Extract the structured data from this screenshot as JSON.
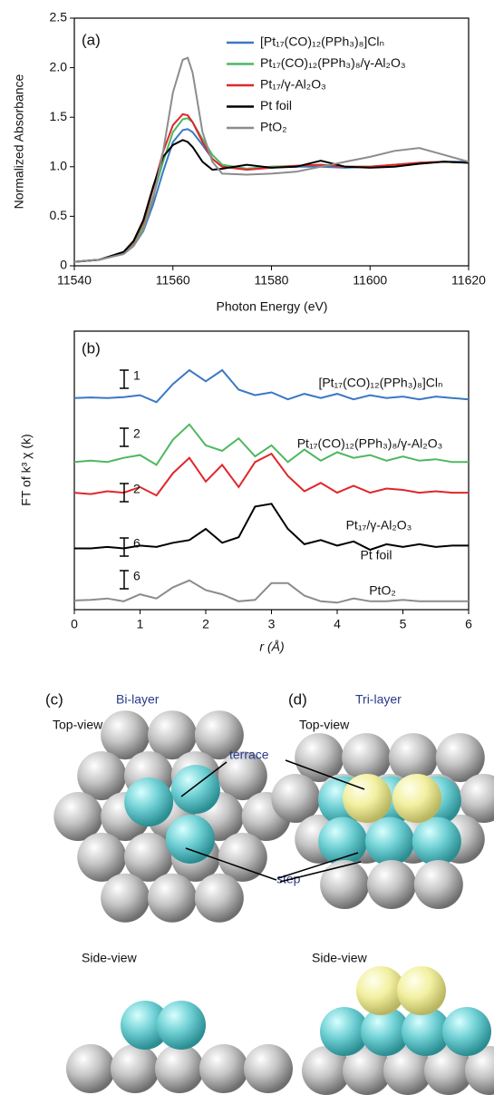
{
  "chart_data": [
    {
      "type": "line",
      "panel": "(a)",
      "x_label": "Photon Energy (eV)",
      "y_label": "Normalized Absorbance",
      "x": [
        11540,
        11545,
        11550,
        11552,
        11554,
        11556,
        11558,
        11560,
        11562,
        11563,
        11564,
        11566,
        11568,
        11570,
        11575,
        11580,
        11585,
        11590,
        11595,
        11600,
        11605,
        11610,
        11615,
        11620
      ],
      "xlim": [
        11540,
        11620
      ],
      "xticks": [
        11540,
        11560,
        11580,
        11600,
        11620
      ],
      "ylim": [
        0,
        2.5
      ],
      "yticks": [
        0,
        0.5,
        {
          "value": 1,
          "label": "1.0"
        },
        1.5,
        {
          "value": 2,
          "label": "2.0"
        },
        2.5
      ],
      "series": [
        {
          "name": "[Pt₁₇(CO)₁₂(PPh₃)₈]Clₙ",
          "color": "#3a78c4",
          "values": [
            0.04,
            0.06,
            0.12,
            0.2,
            0.35,
            0.62,
            0.95,
            1.25,
            1.37,
            1.38,
            1.35,
            1.22,
            1.08,
            1.0,
            0.98,
            1.0,
            1.0,
            1.0,
            0.99,
            1.0,
            1.02,
            1.04,
            1.05,
            1.05
          ]
        },
        {
          "name": "Pt₁₇(CO)₁₂(PPh₃)₈/γ-Al₂O₃",
          "color": "#4db860",
          "values": [
            0.04,
            0.06,
            0.13,
            0.22,
            0.4,
            0.7,
            1.05,
            1.35,
            1.48,
            1.49,
            1.45,
            1.28,
            1.12,
            1.02,
            0.98,
            1.0,
            1.01,
            1.02,
            1.0,
            1.0,
            1.02,
            1.04,
            1.05,
            1.04
          ]
        },
        {
          "name": "Pt₁₇/γ-Al₂O₃",
          "color": "#e0262b",
          "values": [
            0.04,
            0.06,
            0.14,
            0.24,
            0.44,
            0.78,
            1.15,
            1.42,
            1.53,
            1.52,
            1.45,
            1.25,
            1.08,
            1.0,
            0.97,
            0.99,
            1.01,
            1.02,
            1.0,
            1.0,
            1.02,
            1.04,
            1.05,
            1.04
          ]
        },
        {
          "name": "Pt foil",
          "color": "#000000",
          "values": [
            0.04,
            0.06,
            0.14,
            0.25,
            0.46,
            0.8,
            1.1,
            1.22,
            1.27,
            1.25,
            1.2,
            1.05,
            0.97,
            0.98,
            1.02,
            0.99,
            1.0,
            1.06,
            1.0,
            0.99,
            1.0,
            1.03,
            1.05,
            1.04
          ]
        },
        {
          "name": "PtO₂",
          "color": "#8c8c8c",
          "values": [
            0.04,
            0.06,
            0.12,
            0.2,
            0.36,
            0.68,
            1.15,
            1.75,
            2.08,
            2.1,
            1.95,
            1.35,
            1.05,
            0.93,
            0.92,
            0.93,
            0.95,
            1.0,
            1.05,
            1.1,
            1.16,
            1.19,
            1.12,
            1.05
          ]
        }
      ]
    },
    {
      "type": "line",
      "panel": "(b)",
      "x_label": "r (Å)",
      "y_label": "FT of k³ χ (k)",
      "x": [
        0,
        0.25,
        0.5,
        0.75,
        1,
        1.25,
        1.5,
        1.75,
        2,
        2.25,
        2.5,
        2.75,
        3,
        3.25,
        3.5,
        3.75,
        4,
        4.25,
        4.5,
        4.75,
        5,
        5.25,
        5.5,
        5.75,
        6
      ],
      "xlim": [
        0,
        6
      ],
      "xticks": [
        0,
        1,
        2,
        3,
        4,
        5,
        6
      ],
      "ylim": [
        0,
        10
      ],
      "series": [
        {
          "name": "[Pt₁₇(CO)₁₂(PPh₃)₈]Clₙ",
          "color": "#3a78c4",
          "scale": 1,
          "values": [
            7.6,
            7.62,
            7.6,
            7.63,
            7.7,
            7.45,
            8.1,
            8.6,
            8.2,
            8.6,
            7.9,
            7.7,
            7.8,
            7.55,
            7.75,
            7.6,
            7.75,
            7.55,
            7.7,
            7.6,
            7.65,
            7.55,
            7.65,
            7.6,
            7.55
          ]
        },
        {
          "name": "Pt₁₇(CO)₁₂(PPh₃)₈/γ-Al₂O₃",
          "color": "#4db860",
          "scale": 2,
          "values": [
            5.3,
            5.35,
            5.3,
            5.45,
            5.55,
            5.2,
            6.1,
            6.65,
            5.9,
            5.7,
            6.15,
            5.5,
            5.9,
            5.3,
            5.75,
            5.35,
            5.65,
            5.45,
            5.55,
            5.35,
            5.5,
            5.35,
            5.4,
            5.3,
            5.3
          ]
        },
        {
          "name": "Pt₁₇/γ-Al₂O₃",
          "color": "#e0262b",
          "scale": 2,
          "values": [
            4.2,
            4.15,
            4.25,
            4.2,
            4.4,
            4.1,
            4.9,
            5.45,
            4.6,
            5.2,
            4.4,
            5.3,
            5.6,
            4.8,
            4.25,
            4.55,
            4.2,
            4.45,
            4.2,
            4.35,
            4.3,
            4.2,
            4.25,
            4.2,
            4.2
          ]
        },
        {
          "name": "Pt foil",
          "color": "#000000",
          "scale": 6,
          "values": [
            2.2,
            2.2,
            2.25,
            2.2,
            2.3,
            2.25,
            2.4,
            2.5,
            2.9,
            2.4,
            2.6,
            3.7,
            3.8,
            2.9,
            2.35,
            2.5,
            2.3,
            2.45,
            2.15,
            2.35,
            2.25,
            2.35,
            2.25,
            2.3,
            2.3
          ]
        },
        {
          "name": "PtO₂",
          "color": "#8c8c8c",
          "scale": 6,
          "values": [
            0.33,
            0.35,
            0.4,
            0.3,
            0.55,
            0.4,
            0.8,
            1.05,
            0.7,
            0.55,
            0.3,
            0.35,
            0.95,
            0.95,
            0.5,
            0.3,
            0.25,
            0.4,
            0.3,
            0.3,
            0.35,
            0.3,
            0.3,
            0.3,
            0.3
          ]
        }
      ]
    }
  ],
  "diagram": {
    "c": {
      "panel": "(c)",
      "title": "Bi-layer",
      "top_view": "Top-view",
      "side_view": "Side-view"
    },
    "d": {
      "panel": "(d)",
      "title": "Tri-layer",
      "top_view": "Top-view",
      "side_view": "Side-view"
    },
    "terrace": "terrace",
    "step": "step"
  }
}
